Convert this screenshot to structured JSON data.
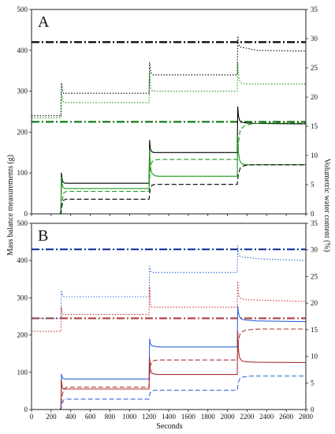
{
  "figure": {
    "xlabel": "Seconds",
    "ylabel_left": "Mass balance measurements (g)",
    "ylabel_right": "Volumetric water content (%)"
  },
  "chart_data": [
    {
      "type": "line",
      "panel_label": "A",
      "xlim": [
        0,
        2800
      ],
      "ylim_left": [
        0,
        500
      ],
      "ylim_right": [
        0,
        35
      ],
      "x_ticks": [
        "0",
        "200",
        "400",
        "600",
        "800",
        "1000",
        "1200",
        "1400",
        "1600",
        "1800",
        "2000",
        "2200",
        "2400",
        "2600",
        "2800"
      ],
      "y_ticks_left": [
        "0",
        "100",
        "200",
        "300",
        "400",
        "500"
      ],
      "y_ticks_right": [
        "0",
        "5",
        "10",
        "15",
        "20",
        "25",
        "30",
        "35"
      ],
      "x_tick_labels_shown": false,
      "series": [
        {
          "color": "#000000",
          "style": "dashdot-thick",
          "axis": "left",
          "x": [
            0,
            2800
          ],
          "y": [
            420,
            420
          ]
        },
        {
          "color": "#1a7a1a",
          "style": "dashdot-thick",
          "axis": "left",
          "x": [
            0,
            2800
          ],
          "y": [
            225,
            225
          ]
        },
        {
          "color": "#000000",
          "style": "dotted",
          "axis": "left",
          "x": [
            0,
            300,
            305,
            312,
            318,
            330,
            360,
            1200,
            1205,
            1212,
            1220,
            1240,
            1300,
            2100,
            2105,
            2112,
            2120,
            2135,
            2200,
            2300,
            2800
          ],
          "y": [
            240,
            240,
            320,
            310,
            300,
            295,
            295,
            295,
            370,
            355,
            345,
            340,
            340,
            340,
            435,
            420,
            410,
            408,
            405,
            400,
            398
          ]
        },
        {
          "color": "#1a9a1a",
          "style": "dotted",
          "axis": "left",
          "x": [
            0,
            300,
            305,
            312,
            320,
            340,
            400,
            1200,
            1205,
            1212,
            1220,
            1240,
            1300,
            2100,
            2105,
            2112,
            2125,
            2145,
            2200,
            2800
          ],
          "y": [
            235,
            235,
            300,
            285,
            275,
            272,
            272,
            272,
            350,
            320,
            305,
            300,
            300,
            300,
            370,
            340,
            325,
            320,
            318,
            318
          ]
        },
        {
          "color": "#000000",
          "style": "solid",
          "axis": "left",
          "x": [
            0,
            290,
            300,
            305,
            312,
            320,
            340,
            400,
            1200,
            1205,
            1212,
            1225,
            1250,
            1300,
            2100,
            2105,
            2112,
            2125,
            2150,
            2200,
            2300,
            2800
          ],
          "y": [
            0,
            0,
            5,
            100,
            85,
            78,
            75,
            75,
            75,
            180,
            160,
            152,
            150,
            150,
            150,
            262,
            240,
            228,
            224,
            222,
            221,
            220
          ]
        },
        {
          "color": "#1a9a1a",
          "style": "solid",
          "axis": "left",
          "x": [
            0,
            290,
            300,
            305,
            312,
            320,
            340,
            400,
            1200,
            1205,
            1212,
            1225,
            1260,
            1300,
            2100,
            2105,
            2112,
            2125,
            2150,
            2200,
            2300,
            2800
          ],
          "y": [
            0,
            0,
            5,
            90,
            72,
            65,
            62,
            62,
            62,
            160,
            120,
            100,
            93,
            92,
            92,
            190,
            150,
            130,
            122,
            120,
            120,
            120
          ]
        },
        {
          "color": "#1a9a1a",
          "style": "dashed",
          "axis": "left",
          "x": [
            0,
            290,
            300,
            310,
            330,
            360,
            400,
            1200,
            1210,
            1230,
            1260,
            1300,
            2100,
            2110,
            2130,
            2170,
            2250,
            2350,
            2800
          ],
          "y": [
            0,
            0,
            0,
            30,
            52,
            55,
            55,
            55,
            110,
            128,
            132,
            133,
            133,
            170,
            205,
            215,
            220,
            222,
            222
          ]
        },
        {
          "color": "#000000",
          "style": "dashed",
          "axis": "left",
          "x": [
            0,
            290,
            300,
            310,
            330,
            360,
            400,
            1200,
            1210,
            1230,
            1260,
            1300,
            2100,
            2110,
            2130,
            2170,
            2250,
            2350,
            2800
          ],
          "y": [
            0,
            0,
            0,
            20,
            34,
            36,
            36,
            36,
            60,
            70,
            72,
            72,
            72,
            95,
            112,
            118,
            120,
            120,
            120
          ]
        }
      ]
    },
    {
      "type": "line",
      "panel_label": "B",
      "xlim": [
        0,
        2800
      ],
      "ylim_left": [
        0,
        500
      ],
      "ylim_right": [
        0,
        35
      ],
      "x_ticks": [
        "0",
        "200",
        "400",
        "600",
        "800",
        "1000",
        "1200",
        "1400",
        "1600",
        "1800",
        "2000",
        "2200",
        "2400",
        "2600",
        "2800"
      ],
      "y_ticks_left": [
        "0",
        "100",
        "200",
        "300",
        "400",
        "500"
      ],
      "y_ticks_right": [
        "0",
        "5",
        "10",
        "15",
        "20",
        "25",
        "30",
        "35"
      ],
      "x_tick_labels_shown": true,
      "series": [
        {
          "color": "#1f3d9a",
          "style": "dashdot-thick",
          "axis": "left",
          "x": [
            0,
            2800
          ],
          "y": [
            430,
            430
          ]
        },
        {
          "color": "#b04a4a",
          "style": "dashdot-thick",
          "axis": "left",
          "x": [
            0,
            2800
          ],
          "y": [
            245,
            245
          ]
        },
        {
          "color": "#3366dd",
          "style": "dotted",
          "axis": "left",
          "x": [
            0,
            300,
            305,
            312,
            320,
            340,
            400,
            1200,
            1205,
            1212,
            1220,
            1240,
            1300,
            2100,
            2105,
            2112,
            2125,
            2145,
            2200,
            2300,
            2800
          ],
          "y": [
            245,
            245,
            320,
            310,
            305,
            303,
            303,
            303,
            385,
            375,
            370,
            368,
            368,
            368,
            440,
            420,
            412,
            410,
            408,
            405,
            400
          ]
        },
        {
          "color": "#cc3333",
          "style": "dotted",
          "axis": "left",
          "x": [
            0,
            300,
            305,
            312,
            320,
            340,
            400,
            1200,
            1205,
            1212,
            1220,
            1240,
            1300,
            2100,
            2105,
            2112,
            2125,
            2145,
            2200,
            2800
          ],
          "y": [
            210,
            210,
            275,
            260,
            255,
            255,
            255,
            255,
            330,
            285,
            275,
            275,
            275,
            275,
            345,
            310,
            300,
            297,
            295,
            290
          ]
        },
        {
          "color": "#3366dd",
          "style": "solid",
          "axis": "left",
          "x": [
            0,
            290,
            300,
            305,
            312,
            320,
            340,
            400,
            1200,
            1205,
            1212,
            1225,
            1250,
            1300,
            2100,
            2105,
            2112,
            2125,
            2150,
            2200,
            2300,
            2800
          ],
          "y": [
            0,
            0,
            5,
            95,
            88,
            84,
            82,
            82,
            82,
            190,
            178,
            172,
            170,
            168,
            168,
            278,
            260,
            248,
            242,
            240,
            238,
            236
          ]
        },
        {
          "color": "#b03030",
          "style": "solid",
          "axis": "left",
          "x": [
            0,
            290,
            300,
            305,
            312,
            320,
            340,
            400,
            1200,
            1205,
            1212,
            1225,
            1260,
            1300,
            2100,
            2105,
            2112,
            2125,
            2150,
            2200,
            2300,
            2800
          ],
          "y": [
            0,
            0,
            5,
            80,
            62,
            56,
            55,
            55,
            55,
            140,
            110,
            98,
            95,
            94,
            94,
            210,
            160,
            138,
            130,
            128,
            127,
            126
          ]
        },
        {
          "color": "#b03030",
          "style": "dashed",
          "axis": "left",
          "x": [
            0,
            290,
            300,
            310,
            330,
            360,
            400,
            1200,
            1210,
            1230,
            1260,
            1300,
            2100,
            2110,
            2130,
            2170,
            2250,
            2350,
            2800
          ],
          "y": [
            0,
            0,
            0,
            35,
            55,
            60,
            60,
            60,
            115,
            130,
            132,
            133,
            133,
            180,
            205,
            212,
            215,
            216,
            216
          ]
        },
        {
          "color": "#3366dd",
          "style": "dashed",
          "axis": "left",
          "x": [
            0,
            290,
            300,
            310,
            330,
            360,
            400,
            1200,
            1210,
            1230,
            1260,
            1300,
            2100,
            2110,
            2130,
            2170,
            2250,
            2350,
            2800
          ],
          "y": [
            0,
            0,
            0,
            15,
            26,
            28,
            28,
            28,
            45,
            50,
            52,
            52,
            52,
            72,
            85,
            88,
            90,
            90,
            90
          ]
        }
      ]
    }
  ]
}
